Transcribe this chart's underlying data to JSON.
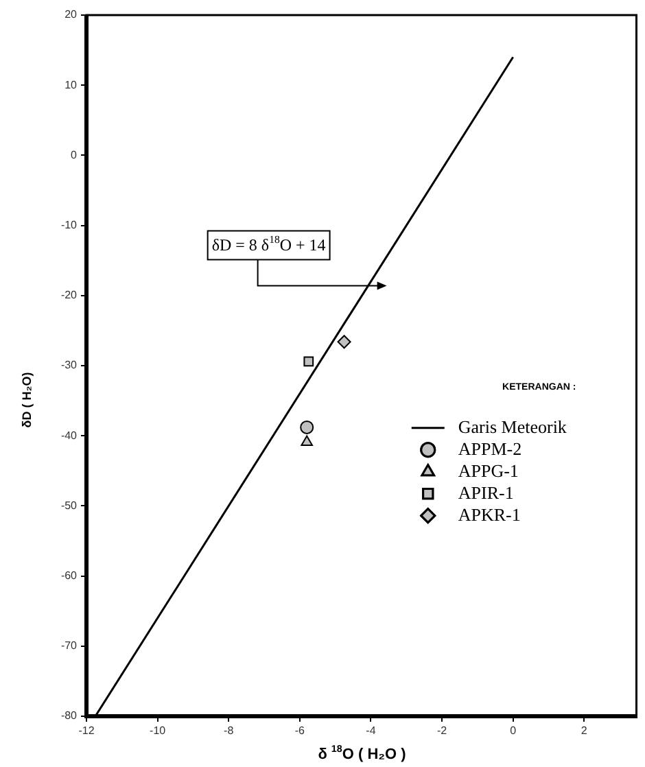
{
  "chart_data": {
    "type": "scatter",
    "xlabel": "δ $^{18}$O ( H₂O )",
    "ylabel": "δD ( H₂O)",
    "legend_title": "KETERANGAN :",
    "xlim": [
      -12,
      3.5
    ],
    "ylim": [
      -80,
      20
    ],
    "xticks": [
      -12,
      -10,
      -8,
      -6,
      -4,
      -2,
      0,
      2
    ],
    "yticks": [
      -80,
      -70,
      -60,
      -50,
      -40,
      -30,
      -20,
      -10,
      0,
      10,
      20
    ],
    "grid": false,
    "legend": "right",
    "annotations": [
      "δD = 8 δ$^{18}$O + 14"
    ],
    "series": [
      {
        "name": "Garis Meteorik",
        "type": "line",
        "color": "#000000",
        "marker": "none",
        "x": [
          -11.75,
          0
        ],
        "values": [
          -80,
          14
        ]
      },
      {
        "name": "APPM-2",
        "color": "#c0c0c0",
        "marker": "circle",
        "x": [
          -5.8
        ],
        "values": [
          -38.8
        ]
      },
      {
        "name": "APPG-1",
        "color": "#c0c0c0",
        "marker": "triangle",
        "x": [
          -5.8
        ],
        "values": [
          -40.9
        ]
      },
      {
        "name": "APIR-1",
        "color": "#c0c0c0",
        "marker": "square",
        "x": [
          -5.75
        ],
        "values": [
          -29.4
        ]
      },
      {
        "name": "APKR-1",
        "color": "#c0c0c0",
        "marker": "diamond",
        "x": [
          -4.75
        ],
        "values": [
          -26.6
        ]
      }
    ]
  }
}
